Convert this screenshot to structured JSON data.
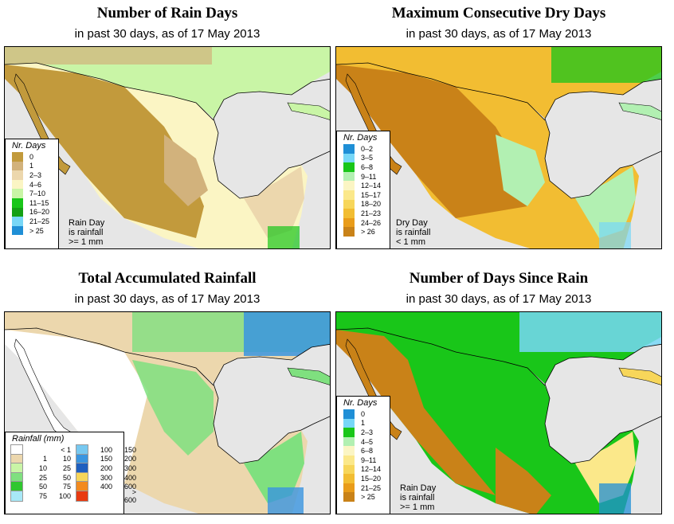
{
  "colors": {
    "background_sea": "#e6e6e6",
    "outline": "#000000"
  },
  "panels": [
    {
      "title": "Number of Rain Days",
      "subtitle": "in past 30 days, as of  17 May 2013",
      "legend": {
        "title": "Nr. Days",
        "items": [
          {
            "label": "0",
            "color": "#c29a3c"
          },
          {
            "label": "1",
            "color": "#d2b27c"
          },
          {
            "label": "2–3",
            "color": "#ecd7ad"
          },
          {
            "label": "4–6",
            "color": "#fbf5c4"
          },
          {
            "label": "7–10",
            "color": "#c9f5a6"
          },
          {
            "label": "11–15",
            "color": "#19c619"
          },
          {
            "label": "16–20",
            "color": "#14a014"
          },
          {
            "label": "21–25",
            "color": "#77d7f7"
          },
          {
            "label": "> 25",
            "color": "#1f8fd6"
          }
        ]
      },
      "note": [
        "Rain Day",
        "is rainfall",
        ">= 1 mm"
      ]
    },
    {
      "title": "Maximum Consecutive Dry Days",
      "subtitle": "in past 30 days, as of  17 May 2013",
      "legend": {
        "title": "Nr. Days",
        "items": [
          {
            "label": "0–2",
            "color": "#1f8fd6"
          },
          {
            "label": "3–5",
            "color": "#77d7f7"
          },
          {
            "label": "6–8",
            "color": "#19c619"
          },
          {
            "label": "9–11",
            "color": "#b2f0b2"
          },
          {
            "label": "12–14",
            "color": "#fbf5c4"
          },
          {
            "label": "15–17",
            "color": "#fbe88a"
          },
          {
            "label": "18–20",
            "color": "#f7d65a"
          },
          {
            "label": "21–23",
            "color": "#f2bd32"
          },
          {
            "label": "24–26",
            "color": "#e99c19"
          },
          {
            "label": "> 26",
            "color": "#c98218"
          }
        ]
      },
      "note": [
        "Dry Day",
        "is rainfall",
        "< 1 mm"
      ]
    },
    {
      "title": "Total Accumulated Rainfall",
      "subtitle": "in past 30 days, as of  17 May 2013",
      "legend": {
        "title": "Rainfall (mm)",
        "items": [
          {
            "lo": "",
            "hi": "< 1",
            "color": "#ffffff"
          },
          {
            "lo": "1",
            "hi": "10",
            "color": "#ecd7ad"
          },
          {
            "lo": "10",
            "hi": "25",
            "color": "#c9f5a6"
          },
          {
            "lo": "25",
            "hi": "50",
            "color": "#7fe07f"
          },
          {
            "lo": "50",
            "hi": "75",
            "color": "#2fc72f"
          },
          {
            "lo": "75",
            "hi": "100",
            "color": "#a8e8f7"
          },
          {
            "lo": "100",
            "hi": "150",
            "color": "#77c8f0"
          },
          {
            "lo": "150",
            "hi": "200",
            "color": "#3a95e0"
          },
          {
            "lo": "200",
            "hi": "300",
            "color": "#1f5fbf"
          },
          {
            "lo": "300",
            "hi": "400",
            "color": "#f7d65a"
          },
          {
            "lo": "400",
            "hi": "600",
            "color": "#f28a1e"
          },
          {
            "lo": "",
            "hi": "> 600",
            "color": "#e83a10"
          }
        ]
      }
    },
    {
      "title": "Number of Days Since Rain",
      "subtitle": "in past 30 days, as of  17 May 2013",
      "legend": {
        "title": "Nr. Days",
        "items": [
          {
            "label": "0",
            "color": "#1f8fd6"
          },
          {
            "label": "1",
            "color": "#77d7f7"
          },
          {
            "label": "2–3",
            "color": "#19c619"
          },
          {
            "label": "4–5",
            "color": "#b2f0b2"
          },
          {
            "label": "6–8",
            "color": "#fbf5c4"
          },
          {
            "label": "9–11",
            "color": "#fbe88a"
          },
          {
            "label": "12–14",
            "color": "#f7d65a"
          },
          {
            "label": "15–20",
            "color": "#f2bd32"
          },
          {
            "label": "21–25",
            "color": "#e99c19"
          },
          {
            "label": "> 25",
            "color": "#c98218"
          }
        ]
      },
      "note": [
        "Rain Day",
        "is rainfall",
        ">= 1 mm"
      ]
    }
  ]
}
